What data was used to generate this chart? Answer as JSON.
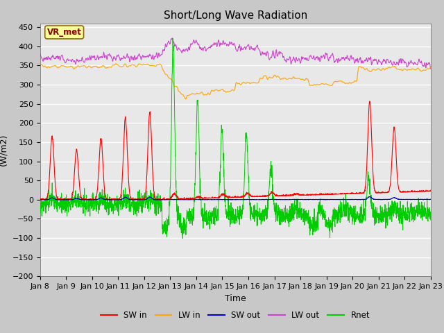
{
  "title": "Short/Long Wave Radiation",
  "xlabel": "Time",
  "ylabel": "(W/m2)",
  "ylim": [
    -200,
    460
  ],
  "xlim": [
    0,
    360
  ],
  "x_tick_labels": [
    "Jan 8",
    "Jan 9",
    "Jan 10",
    "Jan 11",
    "Jan 12",
    "Jan 13",
    "Jan 14",
    "Jan 15",
    "Jan 16",
    "Jan 17",
    "Jan 18",
    "Jan 19",
    "Jan 20",
    "Jan 21",
    "Jan 22",
    "Jan 23"
  ],
  "annotation_text": "VR_met",
  "annotation_color": "#8B0000",
  "annotation_bg": "#FFFF99",
  "colors": {
    "SW_in": "#FF0000",
    "LW_in": "#FFA500",
    "SW_out": "#0000CD",
    "LW_out": "#CC44CC",
    "Rnet": "#00CC00"
  },
  "legend_labels": [
    "SW in",
    "LW in",
    "SW out",
    "LW out",
    "Rnet"
  ],
  "fig_bg": "#C8C8C8",
  "plot_bg": "#E8E8E8",
  "grid_color": "#FFFFFF",
  "title_fontsize": 11,
  "label_fontsize": 9,
  "tick_fontsize": 8
}
